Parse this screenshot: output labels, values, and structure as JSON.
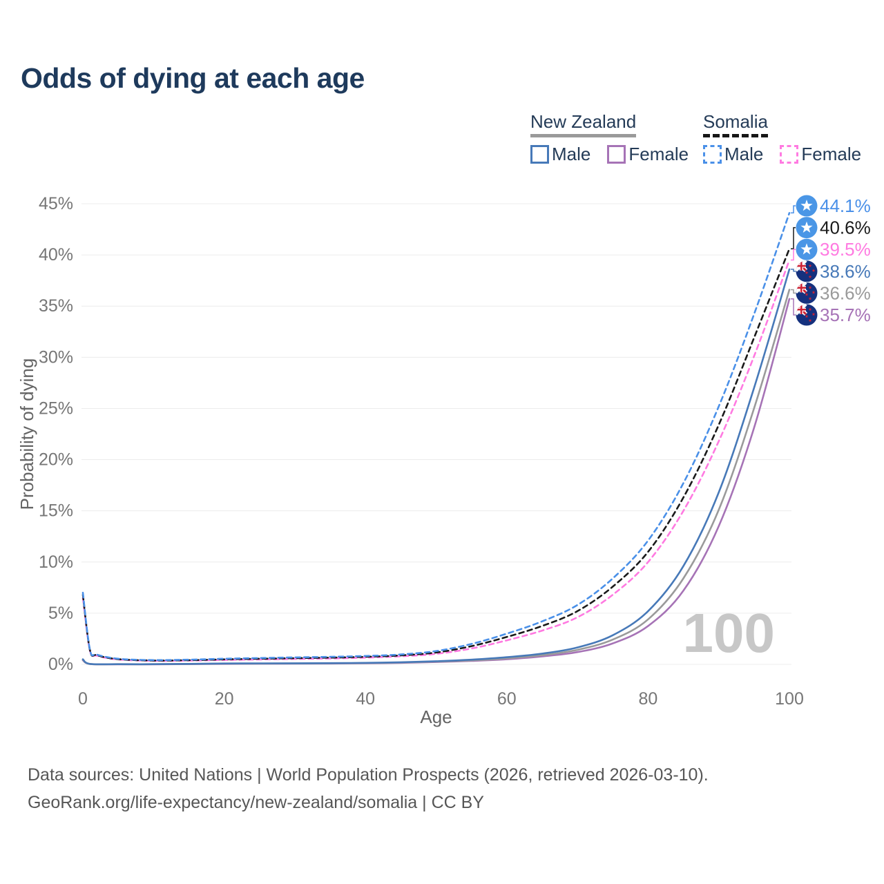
{
  "title": "Odds of dying at each age",
  "legend": {
    "groups": [
      {
        "country": "New Zealand",
        "line_style": "solid",
        "underline_color": "#9a9a9a",
        "items": [
          {
            "label": "Male",
            "color": "#4779b8",
            "dashed": false
          },
          {
            "label": "Female",
            "color": "#a673b6",
            "dashed": false
          }
        ]
      },
      {
        "country": "Somalia",
        "line_style": "dashed",
        "underline_color": "#161616",
        "items": [
          {
            "label": "Male",
            "color": "#4a90e8",
            "dashed": true
          },
          {
            "label": "Female",
            "color": "#ff7ae1",
            "dashed": true
          }
        ]
      }
    ]
  },
  "watermark": "100",
  "footer": {
    "line1": "Data sources: United Nations | World Population Prospects (2026, retrieved 2026-03-10).",
    "line2": "GeoRank.org/life-expectancy/new-zealand/somalia | CC BY"
  },
  "chart_data": {
    "type": "line",
    "title": "Odds of dying at each age",
    "xlabel": "Age",
    "ylabel": "Probability of dying",
    "xlim": [
      0,
      100
    ],
    "ylim": [
      0,
      45
    ],
    "xticks": [
      0,
      20,
      40,
      60,
      80,
      100
    ],
    "yticks": [
      0,
      5,
      10,
      15,
      20,
      25,
      30,
      35,
      40,
      45
    ],
    "ytick_suffix": "%",
    "grid": "horizontal",
    "legend_position": "top-right",
    "series": [
      {
        "id": "somalia-male",
        "name": "Somalia Male",
        "country": "Somalia",
        "sex": "Male",
        "color": "#4a90e8",
        "dashed": true,
        "flag": "so",
        "end_label": "44.1%",
        "end_value": 44.1,
        "points": [
          [
            0,
            7.0
          ],
          [
            1,
            1.45
          ],
          [
            2,
            0.95
          ],
          [
            5,
            0.55
          ],
          [
            10,
            0.42
          ],
          [
            15,
            0.46
          ],
          [
            20,
            0.55
          ],
          [
            25,
            0.62
          ],
          [
            30,
            0.68
          ],
          [
            35,
            0.74
          ],
          [
            40,
            0.82
          ],
          [
            45,
            0.97
          ],
          [
            50,
            1.3
          ],
          [
            55,
            2.0
          ],
          [
            60,
            3.0
          ],
          [
            65,
            4.2
          ],
          [
            70,
            5.8
          ],
          [
            75,
            8.4
          ],
          [
            80,
            12.1
          ],
          [
            85,
            17.7
          ],
          [
            90,
            25.2
          ],
          [
            95,
            34.2
          ],
          [
            100,
            44.1
          ]
        ]
      },
      {
        "id": "somalia-both",
        "name": "Somalia Both sexes",
        "country": "Somalia",
        "sex": "Both",
        "color": "#1a1a1a",
        "dashed": true,
        "flag": "so",
        "end_label": "40.6%",
        "end_value": 40.6,
        "points": [
          [
            0,
            6.8
          ],
          [
            1,
            1.4
          ],
          [
            2,
            0.9
          ],
          [
            5,
            0.51
          ],
          [
            10,
            0.38
          ],
          [
            15,
            0.41
          ],
          [
            20,
            0.49
          ],
          [
            25,
            0.55
          ],
          [
            30,
            0.61
          ],
          [
            35,
            0.66
          ],
          [
            40,
            0.74
          ],
          [
            45,
            0.88
          ],
          [
            50,
            1.16
          ],
          [
            55,
            1.78
          ],
          [
            60,
            2.68
          ],
          [
            65,
            3.75
          ],
          [
            70,
            5.2
          ],
          [
            75,
            7.6
          ],
          [
            80,
            11.0
          ],
          [
            85,
            16.3
          ],
          [
            90,
            23.4
          ],
          [
            95,
            31.9
          ],
          [
            100,
            40.6
          ]
        ]
      },
      {
        "id": "somalia-female",
        "name": "Somalia Female",
        "country": "Somalia",
        "sex": "Female",
        "color": "#ff7ae1",
        "dashed": true,
        "flag": "so",
        "end_label": "39.5%",
        "end_value": 39.5,
        "points": [
          [
            0,
            6.5
          ],
          [
            1,
            1.35
          ],
          [
            2,
            0.85
          ],
          [
            5,
            0.48
          ],
          [
            10,
            0.35
          ],
          [
            15,
            0.37
          ],
          [
            20,
            0.43
          ],
          [
            25,
            0.48
          ],
          [
            30,
            0.53
          ],
          [
            35,
            0.58
          ],
          [
            40,
            0.66
          ],
          [
            45,
            0.79
          ],
          [
            50,
            1.03
          ],
          [
            55,
            1.55
          ],
          [
            60,
            2.35
          ],
          [
            65,
            3.3
          ],
          [
            70,
            4.6
          ],
          [
            75,
            6.8
          ],
          [
            80,
            10.0
          ],
          [
            85,
            15.0
          ],
          [
            90,
            21.8
          ],
          [
            95,
            30.1
          ],
          [
            100,
            39.5
          ]
        ]
      },
      {
        "id": "new-zealand-male",
        "name": "New Zealand Male",
        "country": "New Zealand",
        "sex": "Male",
        "color": "#4779b8",
        "dashed": false,
        "flag": "nz",
        "end_label": "38.6%",
        "end_value": 38.6,
        "points": [
          [
            0,
            0.5
          ],
          [
            1,
            0.05
          ],
          [
            5,
            0.02
          ],
          [
            10,
            0.02
          ],
          [
            15,
            0.05
          ],
          [
            20,
            0.09
          ],
          [
            25,
            0.1
          ],
          [
            30,
            0.11
          ],
          [
            35,
            0.12
          ],
          [
            40,
            0.15
          ],
          [
            45,
            0.21
          ],
          [
            50,
            0.31
          ],
          [
            55,
            0.46
          ],
          [
            60,
            0.7
          ],
          [
            65,
            1.05
          ],
          [
            70,
            1.65
          ],
          [
            75,
            2.85
          ],
          [
            80,
            5.2
          ],
          [
            85,
            9.6
          ],
          [
            90,
            16.8
          ],
          [
            95,
            27.0
          ],
          [
            100,
            38.6
          ]
        ]
      },
      {
        "id": "new-zealand-both",
        "name": "New Zealand Both sexes",
        "country": "New Zealand",
        "sex": "Both",
        "color": "#9a9a9a",
        "dashed": false,
        "flag": "nz",
        "end_label": "36.6%",
        "end_value": 36.6,
        "points": [
          [
            0,
            0.45
          ],
          [
            1,
            0.04
          ],
          [
            5,
            0.02
          ],
          [
            10,
            0.02
          ],
          [
            15,
            0.04
          ],
          [
            20,
            0.07
          ],
          [
            25,
            0.08
          ],
          [
            30,
            0.09
          ],
          [
            35,
            0.1
          ],
          [
            40,
            0.13
          ],
          [
            45,
            0.18
          ],
          [
            50,
            0.27
          ],
          [
            55,
            0.39
          ],
          [
            60,
            0.59
          ],
          [
            65,
            0.9
          ],
          [
            70,
            1.42
          ],
          [
            75,
            2.42
          ],
          [
            80,
            4.4
          ],
          [
            85,
            8.4
          ],
          [
            90,
            15.1
          ],
          [
            95,
            25.0
          ],
          [
            100,
            36.6
          ]
        ]
      },
      {
        "id": "new-zealand-female",
        "name": "New Zealand Female",
        "country": "New Zealand",
        "sex": "Female",
        "color": "#a673b6",
        "dashed": false,
        "flag": "nz",
        "end_label": "35.7%",
        "end_value": 35.7,
        "points": [
          [
            0,
            0.4
          ],
          [
            1,
            0.04
          ],
          [
            5,
            0.01
          ],
          [
            10,
            0.01
          ],
          [
            15,
            0.03
          ],
          [
            20,
            0.05
          ],
          [
            25,
            0.06
          ],
          [
            30,
            0.07
          ],
          [
            35,
            0.08
          ],
          [
            40,
            0.11
          ],
          [
            45,
            0.15
          ],
          [
            50,
            0.23
          ],
          [
            55,
            0.34
          ],
          [
            60,
            0.5
          ],
          [
            65,
            0.78
          ],
          [
            70,
            1.2
          ],
          [
            75,
            2.05
          ],
          [
            80,
            3.75
          ],
          [
            85,
            7.2
          ],
          [
            90,
            13.5
          ],
          [
            95,
            23.1
          ],
          [
            100,
            35.7
          ]
        ]
      }
    ]
  }
}
